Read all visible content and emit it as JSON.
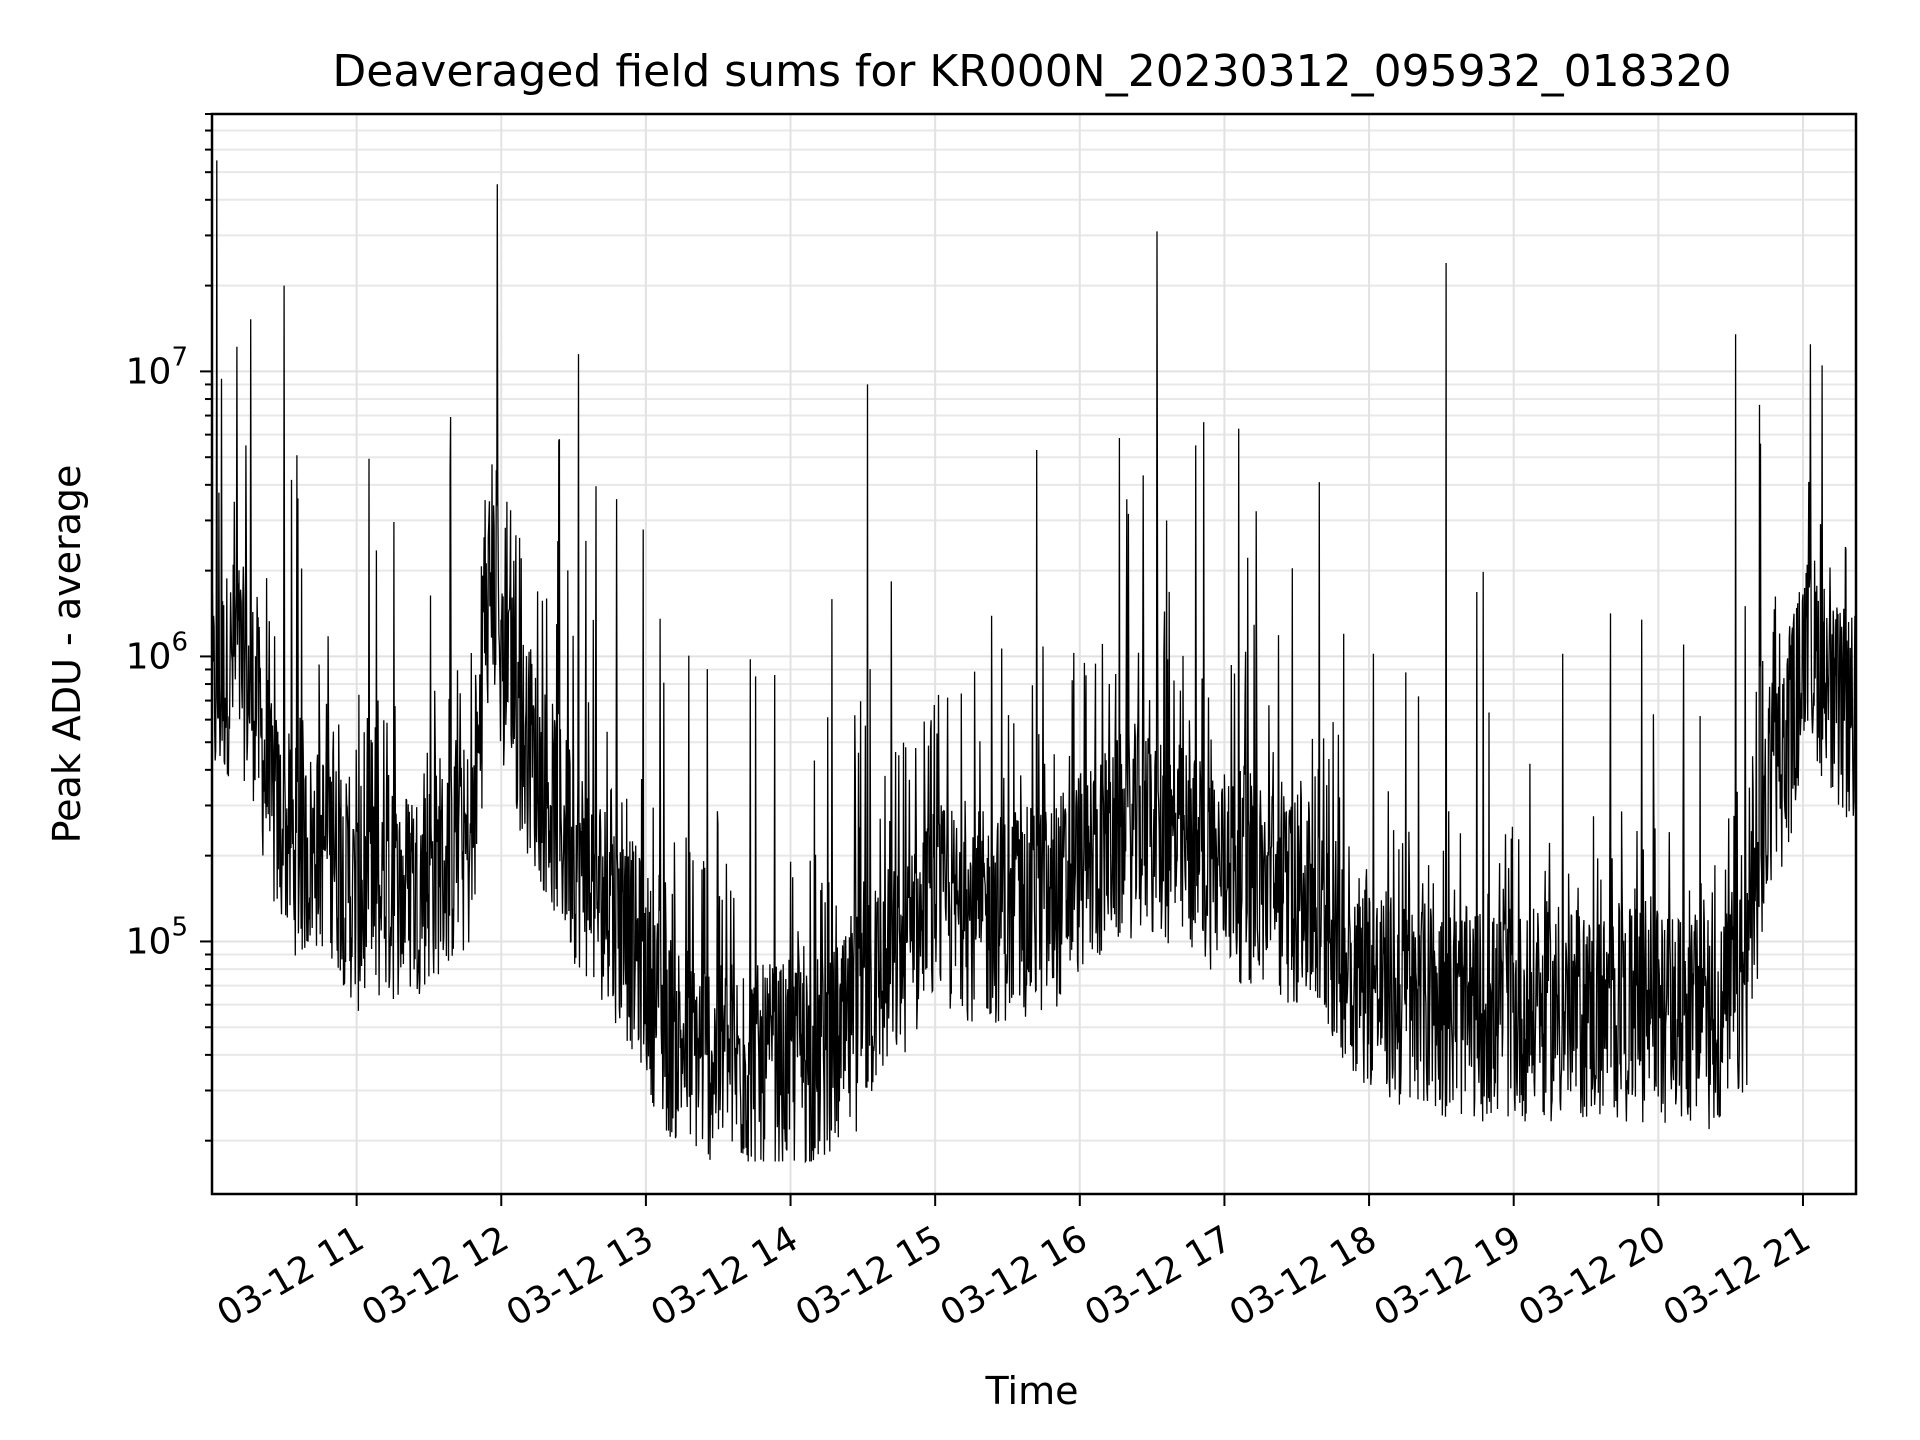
{
  "chart_data": {
    "type": "line",
    "title": "Deaveraged field sums for KR000N_20230312_095932_018320",
    "xlabel": "Time",
    "ylabel": "Peak ADU - average",
    "xscale": "time",
    "yscale": "log",
    "xlim": [
      "2023-03-12 10:00",
      "2023-03-12 21:22"
    ],
    "ylim": [
      13000,
      80000000
    ],
    "grid": true,
    "x_ticks": [
      {
        "x": "2023-03-12 11:00",
        "label": "03-12 11"
      },
      {
        "x": "2023-03-12 12:00",
        "label": "03-12 12"
      },
      {
        "x": "2023-03-12 13:00",
        "label": "03-12 13"
      },
      {
        "x": "2023-03-12 14:00",
        "label": "03-12 14"
      },
      {
        "x": "2023-03-12 15:00",
        "label": "03-12 15"
      },
      {
        "x": "2023-03-12 16:00",
        "label": "03-12 16"
      },
      {
        "x": "2023-03-12 17:00",
        "label": "03-12 17"
      },
      {
        "x": "2023-03-12 18:00",
        "label": "03-12 18"
      },
      {
        "x": "2023-03-12 19:00",
        "label": "03-12 19"
      },
      {
        "x": "2023-03-12 20:00",
        "label": "03-12 20"
      },
      {
        "x": "2023-03-12 21:00",
        "label": "03-12 21"
      }
    ],
    "y_ticks": [
      {
        "value": 100000,
        "base": "10",
        "exp": "5"
      },
      {
        "value": 1000000,
        "base": "10",
        "exp": "6"
      },
      {
        "value": 10000000,
        "base": "10",
        "exp": "7"
      }
    ],
    "series_color": "#000000",
    "baseline": [
      [
        "2023-03-12 10:00",
        700000
      ],
      [
        "2023-03-12 10:10",
        1000000
      ],
      [
        "2023-03-12 10:18",
        700000
      ],
      [
        "2023-03-12 10:24",
        300000
      ],
      [
        "2023-03-12 10:36",
        200000
      ],
      [
        "2023-03-12 10:48",
        220000
      ],
      [
        "2023-03-12 11:00",
        130000
      ],
      [
        "2023-03-12 11:24",
        150000
      ],
      [
        "2023-03-12 11:48",
        220000
      ],
      [
        "2023-03-12 11:56",
        2200000
      ],
      [
        "2023-03-12 12:00",
        900000
      ],
      [
        "2023-03-12 12:12",
        450000
      ],
      [
        "2023-03-12 12:30",
        200000
      ],
      [
        "2023-03-12 12:48",
        120000
      ],
      [
        "2023-03-12 13:00",
        80000
      ],
      [
        "2023-03-12 13:06",
        50000
      ],
      [
        "2023-03-12 13:24",
        40000
      ],
      [
        "2023-03-12 13:48",
        35000
      ],
      [
        "2023-03-12 14:12",
        38000
      ],
      [
        "2023-03-12 14:24",
        45000
      ],
      [
        "2023-03-12 14:36",
        70000
      ],
      [
        "2023-03-12 15:00",
        130000
      ],
      [
        "2023-03-12 15:24",
        120000
      ],
      [
        "2023-03-12 15:48",
        130000
      ],
      [
        "2023-03-12 16:00",
        180000
      ],
      [
        "2023-03-12 16:24",
        250000
      ],
      [
        "2023-03-12 16:48",
        200000
      ],
      [
        "2023-03-12 17:12",
        160000
      ],
      [
        "2023-03-12 17:36",
        130000
      ],
      [
        "2023-03-12 17:54",
        80000
      ],
      [
        "2023-03-12 18:12",
        60000
      ],
      [
        "2023-03-12 18:48",
        55000
      ],
      [
        "2023-03-12 19:24",
        55000
      ],
      [
        "2023-03-12 20:00",
        55000
      ],
      [
        "2023-03-12 20:24",
        50000
      ],
      [
        "2023-03-12 20:36",
        65000
      ],
      [
        "2023-03-12 20:42",
        200000
      ],
      [
        "2023-03-12 20:48",
        350000
      ],
      [
        "2023-03-12 20:54",
        500000
      ],
      [
        "2023-03-12 21:00",
        900000
      ],
      [
        "2023-03-12 21:06",
        1000000
      ],
      [
        "2023-03-12 21:12",
        650000
      ],
      [
        "2023-03-12 21:22",
        600000
      ]
    ],
    "spikes": [
      [
        "2023-03-12 10:02",
        55000000
      ],
      [
        "2023-03-12 10:14",
        5500000
      ],
      [
        "2023-03-12 10:30",
        20000000
      ],
      [
        "2023-03-12 11:58",
        4500000
      ],
      [
        "2023-03-12 12:32",
        11500000
      ],
      [
        "2023-03-12 14:32",
        9000000
      ],
      [
        "2023-03-12 15:42",
        5300000
      ],
      [
        "2023-03-12 16:32",
        31000000
      ],
      [
        "2023-03-12 16:48",
        5500000
      ],
      [
        "2023-03-12 17:06",
        6300000
      ],
      [
        "2023-03-12 18:32",
        24000000
      ],
      [
        "2023-03-12 20:32",
        13500000
      ],
      [
        "2023-03-12 21:08",
        10500000
      ]
    ]
  }
}
